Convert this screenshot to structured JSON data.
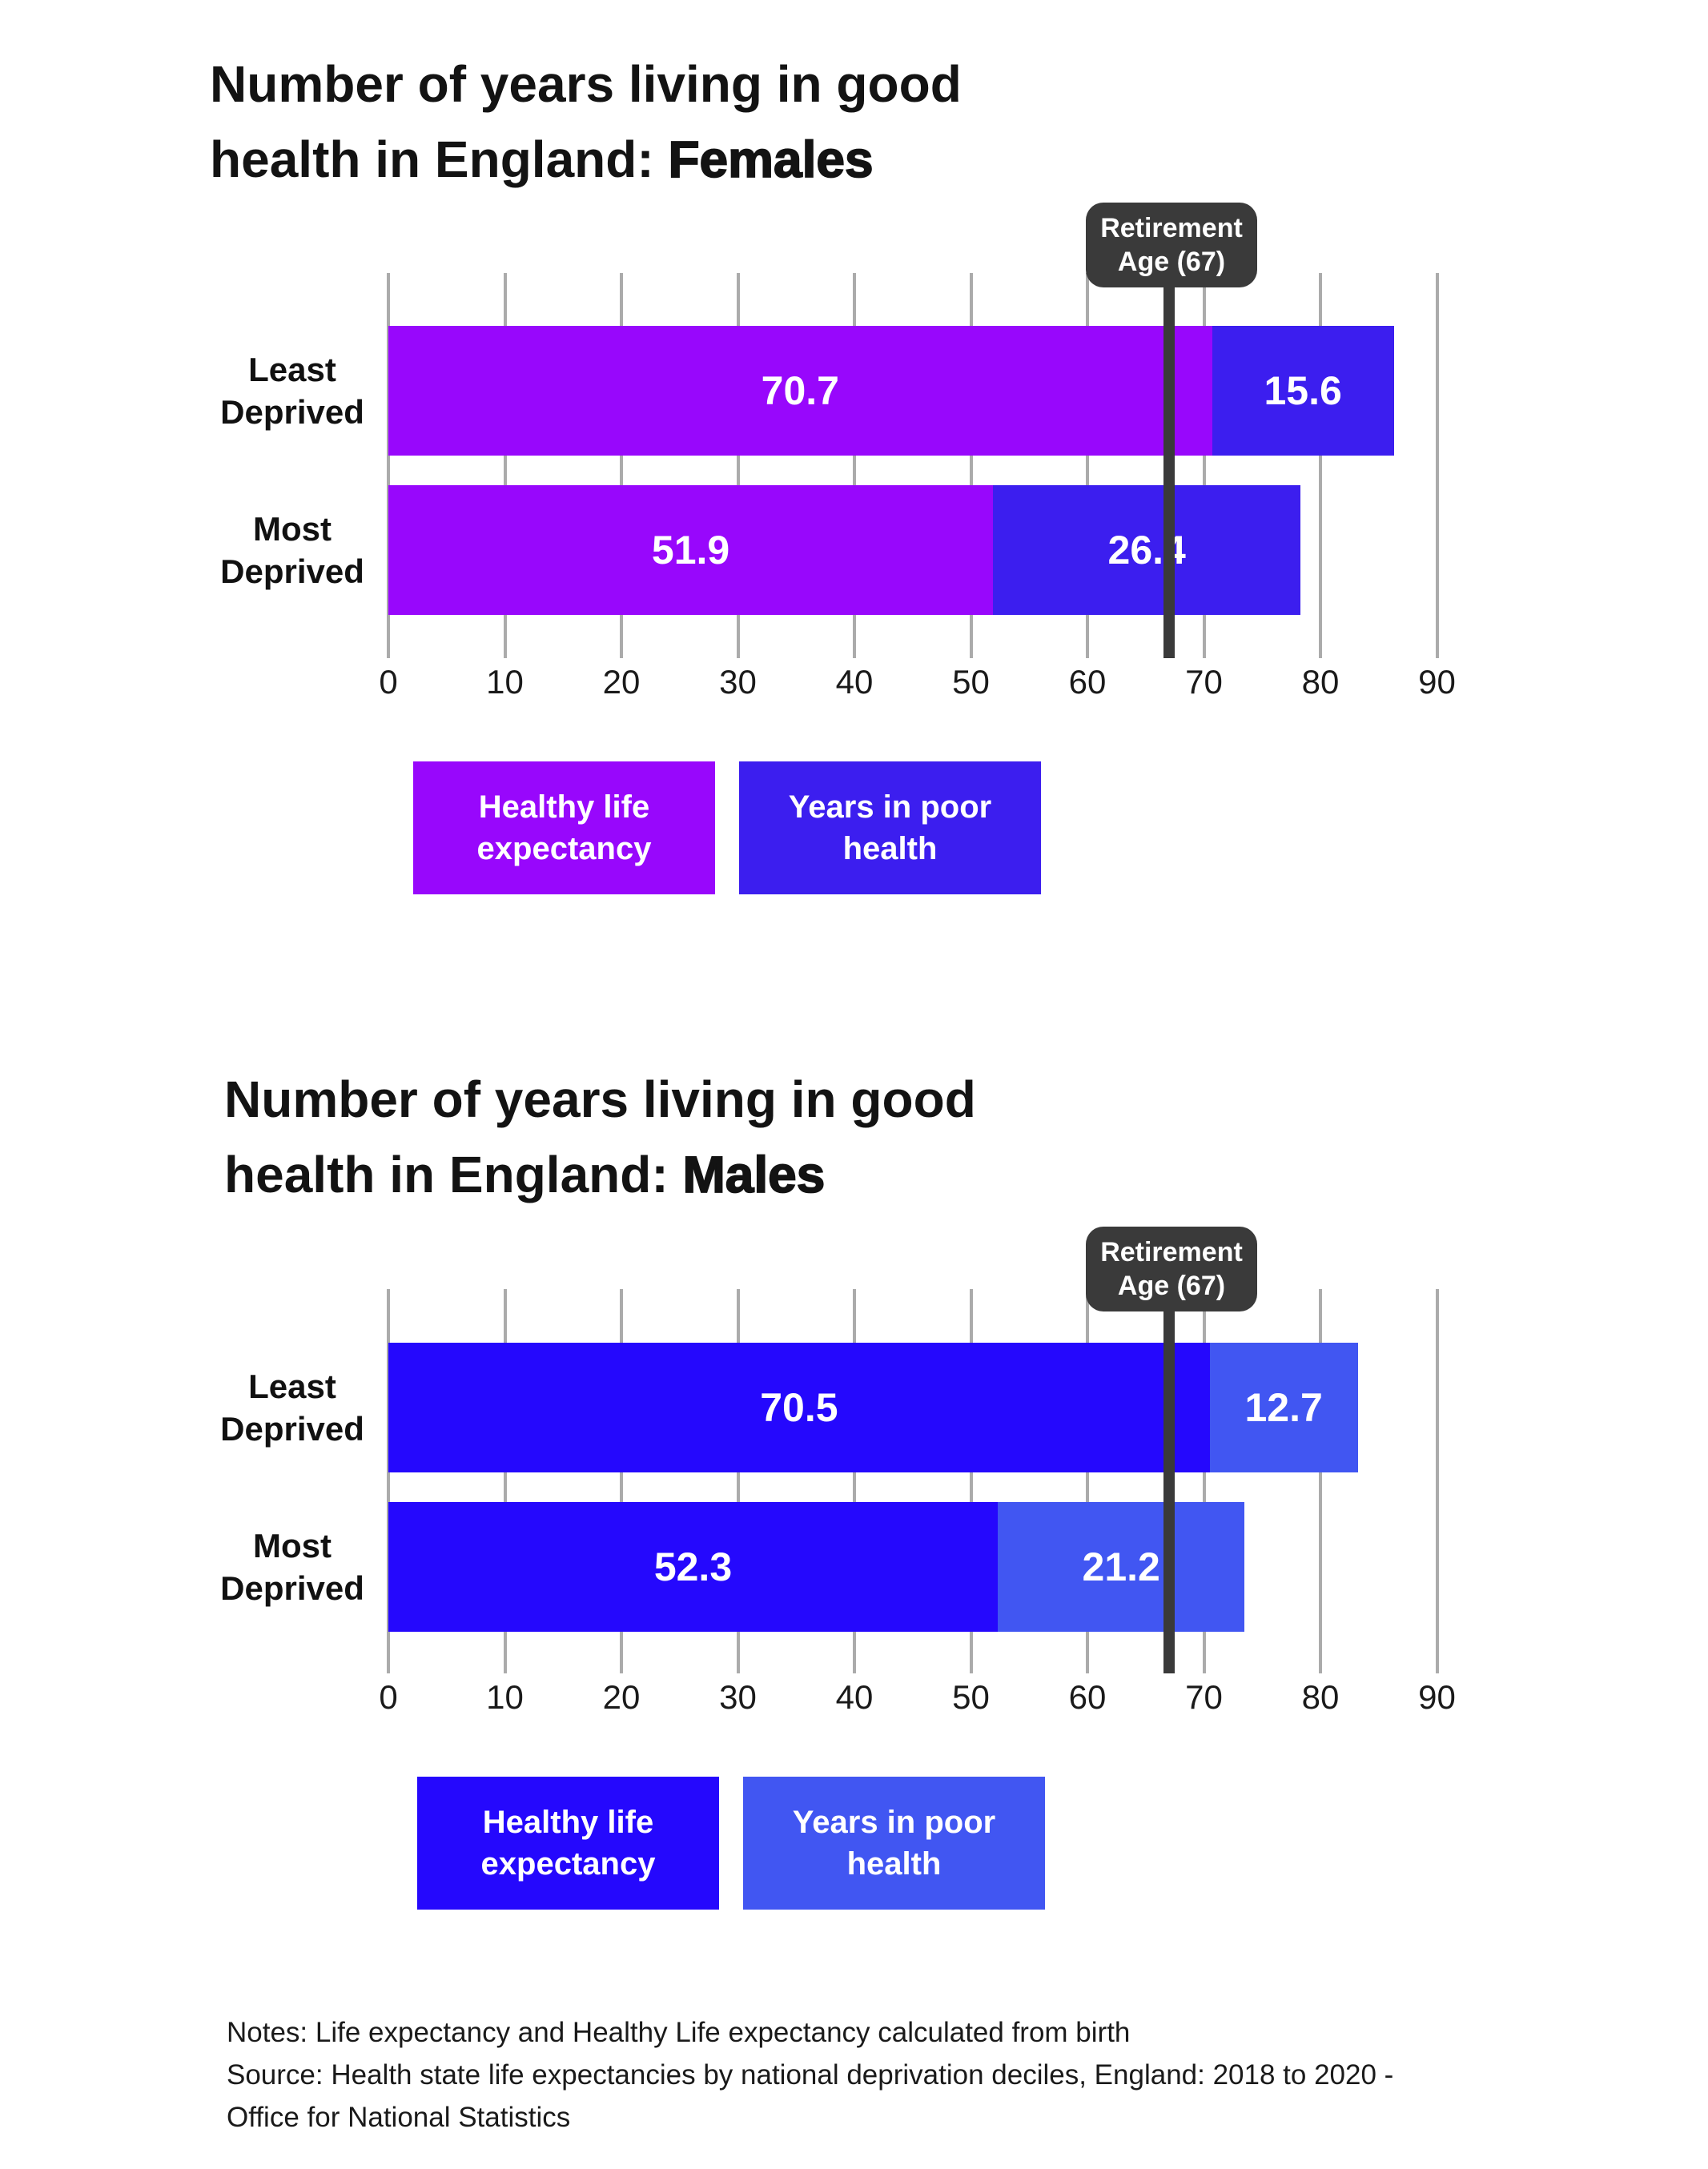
{
  "colors": {
    "female_healthy": "#9807FC",
    "female_poor": "#3C1EEF",
    "male_healthy": "#2508FD",
    "male_poor": "#4156F2",
    "annotation_dark": "#3A3A3A",
    "gridline": "#ABABAB",
    "text": "#131313"
  },
  "chart_data": [
    {
      "type": "bar",
      "orientation": "horizontal",
      "stacked": true,
      "title": "Number of years living in good health in England: Females",
      "title_line1": "Number of years living in good",
      "title_line2_prefix": "health in England: ",
      "title_line2_emphasis": "Females",
      "categories": [
        "Least Deprived",
        "Most Deprived"
      ],
      "series": [
        {
          "name": "Healthy life expectancy",
          "color": "#9807FC",
          "values": [
            70.7,
            51.9
          ]
        },
        {
          "name": "Years in poor health",
          "color": "#3C1EEF",
          "values": [
            15.6,
            26.4
          ]
        }
      ],
      "xlim": [
        0,
        90
      ],
      "xticks": [
        0,
        10,
        20,
        30,
        40,
        50,
        60,
        70,
        80,
        90
      ],
      "grid": true,
      "legend_position": "bottom",
      "annotation": {
        "label": "Retirement Age (67)",
        "line1": "Retirement",
        "line2": "Age (67)",
        "x": 67,
        "color": "#3A3A3A"
      }
    },
    {
      "type": "bar",
      "orientation": "horizontal",
      "stacked": true,
      "title": "Number of years living in good health in England: Males",
      "title_line1": "Number of years living in good",
      "title_line2_prefix": "health in England: ",
      "title_line2_emphasis": "Males",
      "categories": [
        "Least Deprived",
        "Most Deprived"
      ],
      "series": [
        {
          "name": "Healthy life expectancy",
          "color": "#2508FD",
          "values": [
            70.5,
            52.3
          ]
        },
        {
          "name": "Years in poor health",
          "color": "#4156F2",
          "values": [
            12.7,
            21.2
          ]
        }
      ],
      "xlim": [
        0,
        90
      ],
      "xticks": [
        0,
        10,
        20,
        30,
        40,
        50,
        60,
        70,
        80,
        90
      ],
      "grid": true,
      "legend_position": "bottom",
      "annotation": {
        "label": "Retirement Age (67)",
        "line1": "Retirement",
        "line2": "Age (67)",
        "x": 67,
        "color": "#3A3A3A"
      }
    }
  ],
  "notes": {
    "lines": [
      "Notes: Life expectancy and Healthy Life expectancy calculated from birth",
      "Source: Health state life expectancies by national deprivation deciles, England: 2018 to 2020 -",
      "Office for National Statistics"
    ]
  }
}
